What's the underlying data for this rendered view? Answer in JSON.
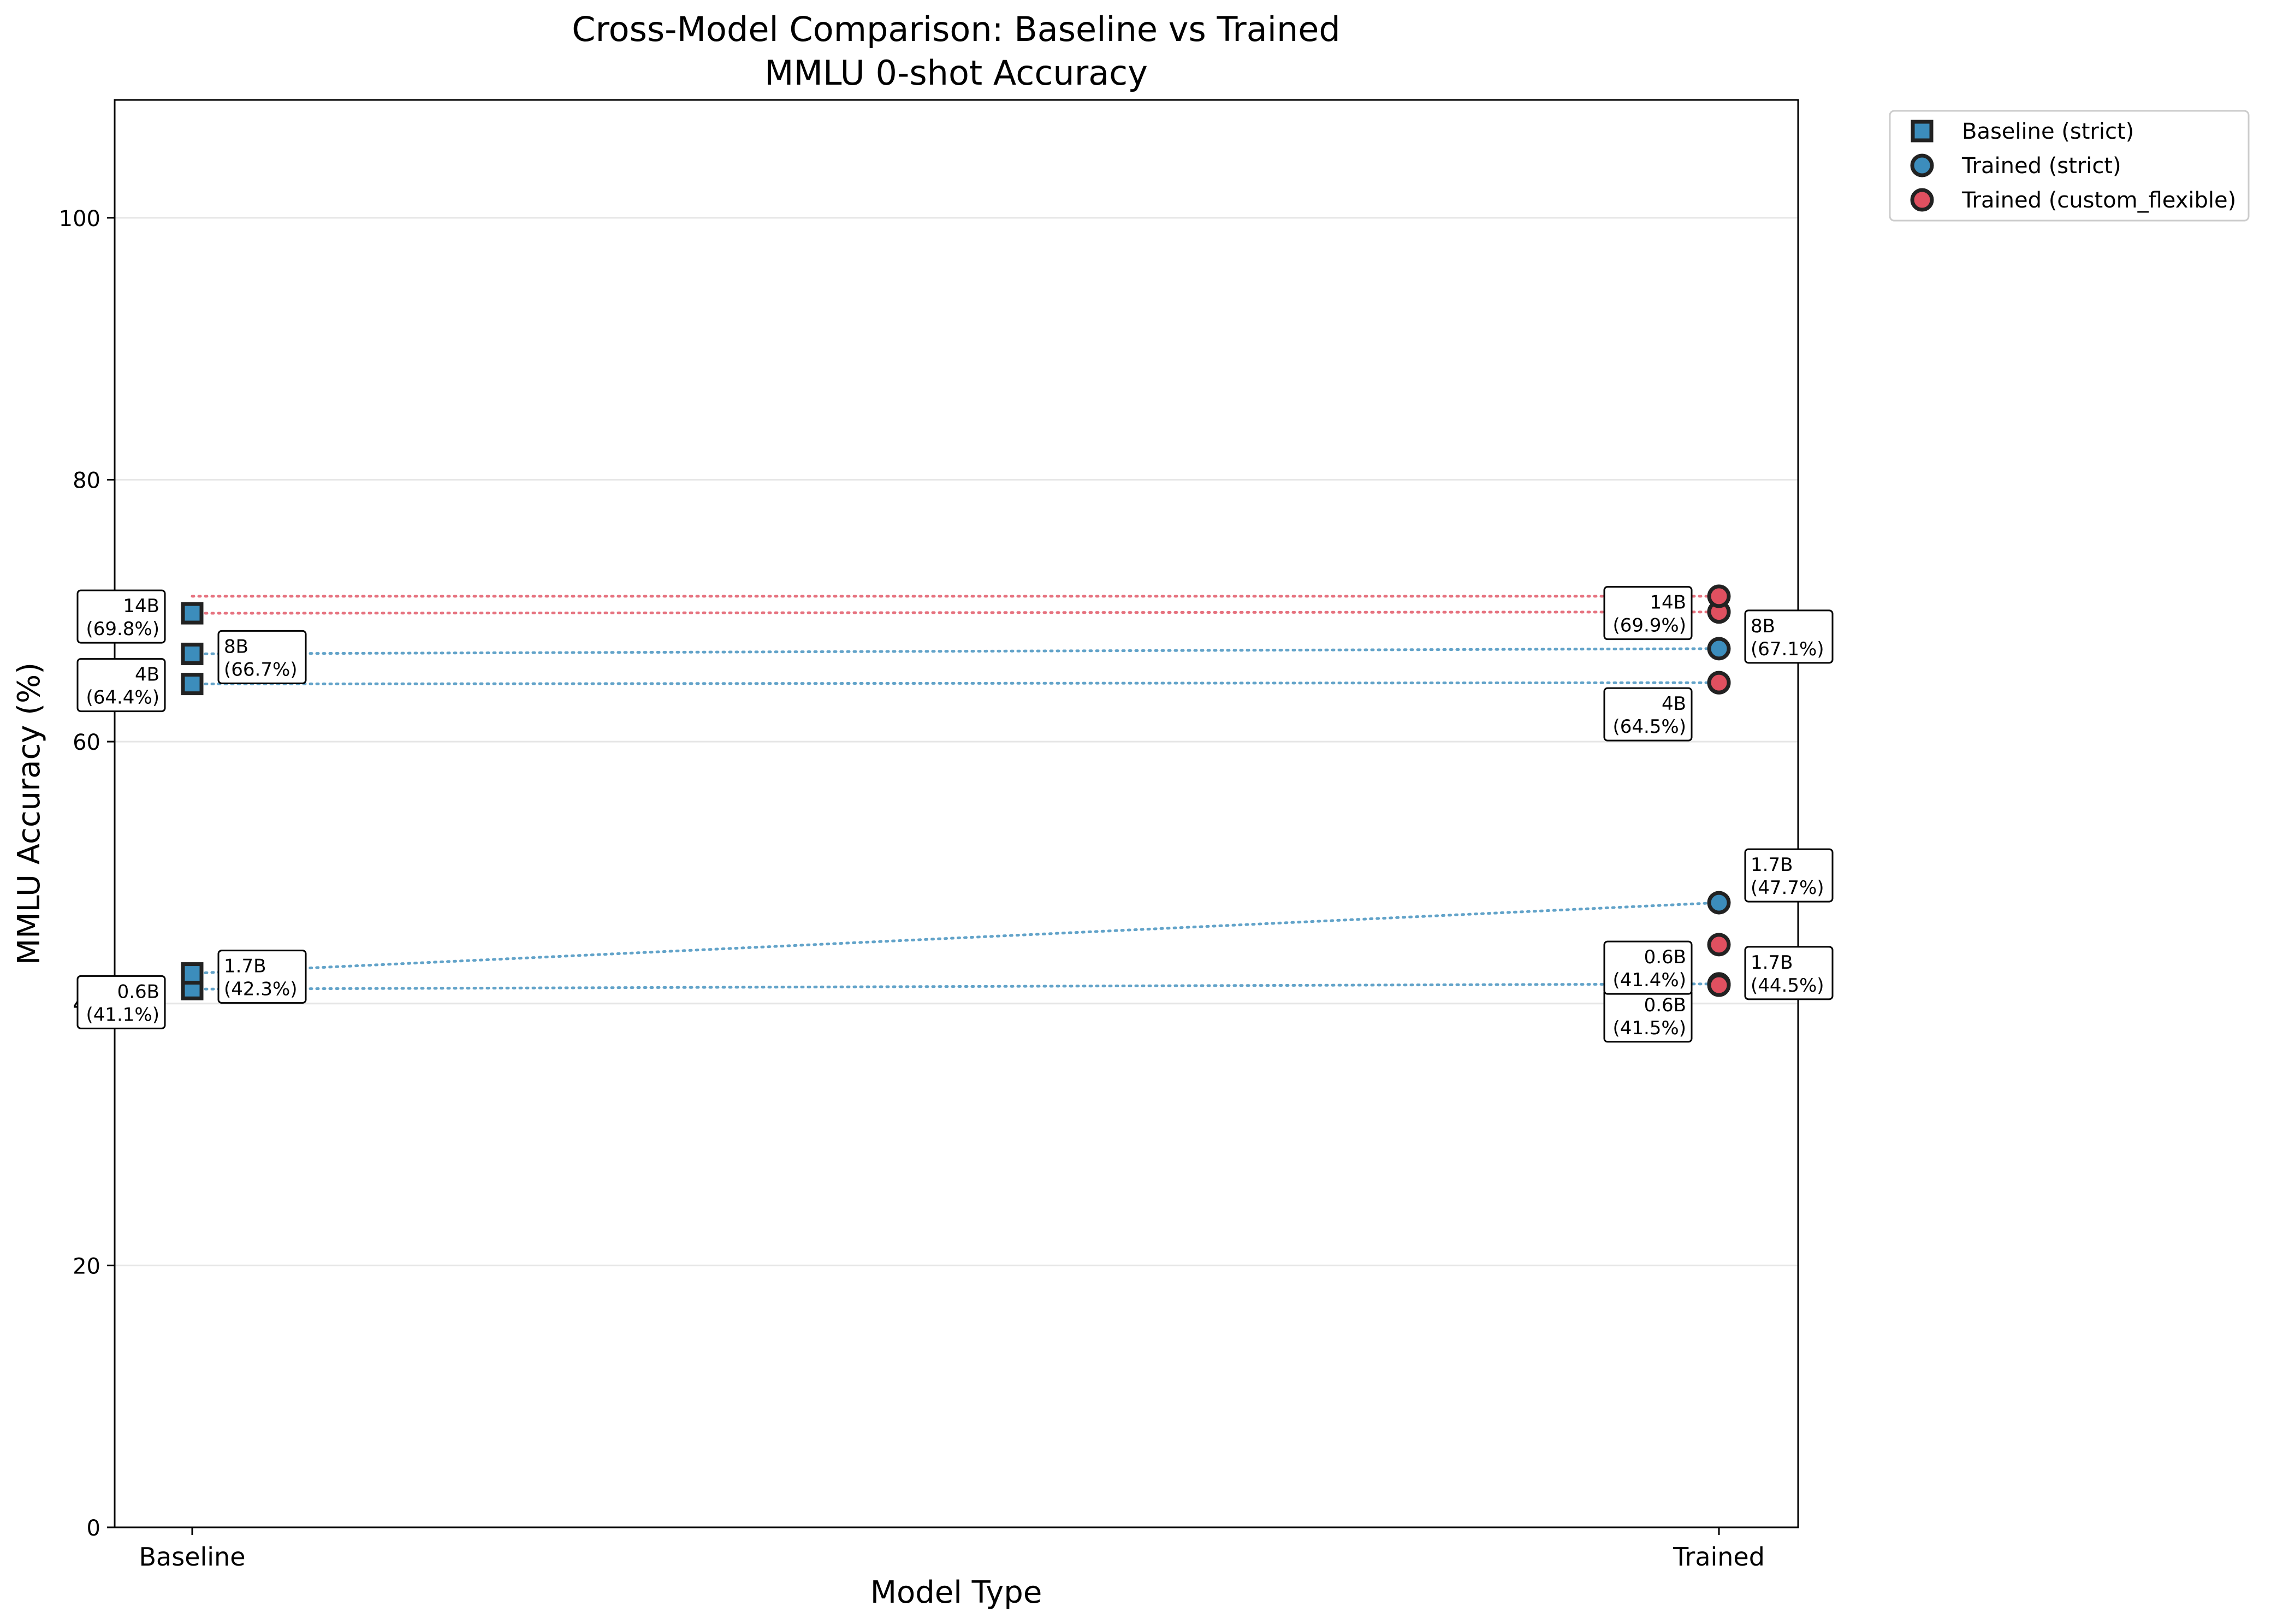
{
  "chart_data": {
    "type": "scatter",
    "title": "Cross-Model Comparison: Baseline vs Trained",
    "subtitle": "MMLU 0-shot Accuracy",
    "xlabel": "Model Type",
    "ylabel": "MMLU Accuracy (%)",
    "categories": [
      "Baseline",
      "Trained"
    ],
    "ylim": [
      0,
      109
    ],
    "yticks": [
      0,
      20,
      40,
      60,
      80,
      100
    ],
    "grid": true,
    "legend_position": "outside-top-right",
    "series": [
      {
        "name": "Baseline (strict)",
        "marker": "square",
        "color": "#3c8dbc",
        "x": "Baseline",
        "points": [
          {
            "model": "0.6B",
            "value": 41.1,
            "label": "(41.1%)"
          },
          {
            "model": "1.7B",
            "value": 42.3,
            "label": "(42.3%)"
          },
          {
            "model": "4B",
            "value": 64.4,
            "label": "(64.4%)"
          },
          {
            "model": "8B",
            "value": 66.7,
            "label": "(66.7%)"
          },
          {
            "model": "14B",
            "value": 69.8,
            "label": "(69.8%)"
          }
        ]
      },
      {
        "name": "Trained (strict)",
        "marker": "circle",
        "color": "#3c8dbc",
        "x": "Trained",
        "points": [
          {
            "model": "0.6B",
            "value": 41.5,
            "label": "(41.5%)"
          },
          {
            "model": "1.7B",
            "value": 47.7,
            "label": "(47.7%)"
          },
          {
            "model": "4B",
            "value": 64.5,
            "label": "(64.5%)"
          },
          {
            "model": "8B",
            "value": 67.1,
            "label": "(67.1%)"
          },
          {
            "model": "14B",
            "value": 69.9,
            "label": "(69.9%)"
          }
        ]
      },
      {
        "name": "Trained (custom_flexible)",
        "marker": "circle",
        "color": "#e05060",
        "x": "Trained",
        "points": [
          {
            "model": "0.6B",
            "value": 41.4,
            "label": "(41.4%)"
          },
          {
            "model": "1.7B",
            "value": 44.5,
            "label": "(44.5%)"
          },
          {
            "model": "4B",
            "value": 64.5
          },
          {
            "model": "8B",
            "value": 69.9
          },
          {
            "model": "14B",
            "value": 71.1
          }
        ]
      }
    ],
    "connectors": [
      {
        "model": "0.6B",
        "from": 41.1,
        "to": 41.5,
        "color": "#3c8dbc"
      },
      {
        "model": "1.7B",
        "from": 42.3,
        "to": 47.7,
        "color": "#3c8dbc"
      },
      {
        "model": "4B",
        "from": 64.4,
        "to": 64.5,
        "color": "#3c8dbc"
      },
      {
        "model": "8B",
        "from": 66.7,
        "to": 67.1,
        "color": "#3c8dbc"
      },
      {
        "model": "14B",
        "from": 69.8,
        "to": 69.9,
        "color": "#e05060"
      },
      {
        "model": "14B",
        "from": 71.1,
        "to": 71.1,
        "color": "#e05060"
      }
    ]
  }
}
